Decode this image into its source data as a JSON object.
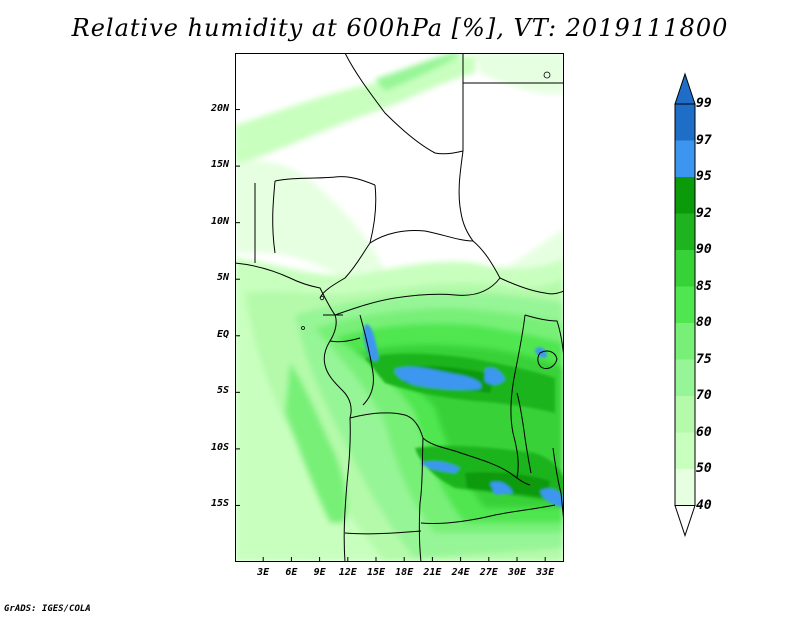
{
  "title": "Relative humidity at 600hPa [%], VT: 2019111800",
  "footer": "GrADS: IGES/COLA",
  "axes": {
    "lat_labels": [
      "20N",
      "15N",
      "10N",
      "5N",
      "EQ",
      "5S",
      "10S",
      "15S"
    ],
    "lon_labels": [
      "3E",
      "6E",
      "9E",
      "12E",
      "15E",
      "18E",
      "21E",
      "24E",
      "27E",
      "30E",
      "33E"
    ],
    "lat_values": [
      20,
      15,
      10,
      5,
      0,
      -5,
      -10,
      -15
    ],
    "lon_values": [
      3,
      6,
      9,
      12,
      15,
      18,
      21,
      24,
      27,
      30,
      33
    ],
    "lat_range": [
      -20,
      25
    ],
    "lon_range": [
      0,
      35
    ]
  },
  "colorbar": {
    "levels": [
      "99",
      "97",
      "95",
      "92",
      "90",
      "85",
      "80",
      "75",
      "70",
      "60",
      "50",
      "40"
    ],
    "colors": [
      "#1e6ec8",
      "#1e6ec8",
      "#3c96f0",
      "#0a9a0a",
      "#1fb41f",
      "#37d237",
      "#50e650",
      "#78f078",
      "#96f596",
      "#b4faaa",
      "#c8ffbe",
      "#e6ffe1",
      "#ffffff"
    ]
  },
  "chart_data": {
    "type": "heatmap",
    "title": "Relative humidity at 600hPa [%], VT: 2019111800",
    "variable": "Relative humidity",
    "level": "600hPa",
    "units": "%",
    "valid_time": "2019111800",
    "xlabel": "",
    "ylabel": "",
    "x_ticks": [
      "3E",
      "6E",
      "9E",
      "12E",
      "15E",
      "18E",
      "21E",
      "24E",
      "27E",
      "30E",
      "33E"
    ],
    "y_ticks": [
      "20N",
      "15N",
      "10N",
      "5N",
      "EQ",
      "5S",
      "10S",
      "15S"
    ],
    "xlim": [
      0,
      35
    ],
    "ylim": [
      -20,
      25
    ],
    "contour_levels": [
      40,
      50,
      60,
      70,
      75,
      80,
      85,
      90,
      92,
      95,
      97,
      99
    ]
  }
}
